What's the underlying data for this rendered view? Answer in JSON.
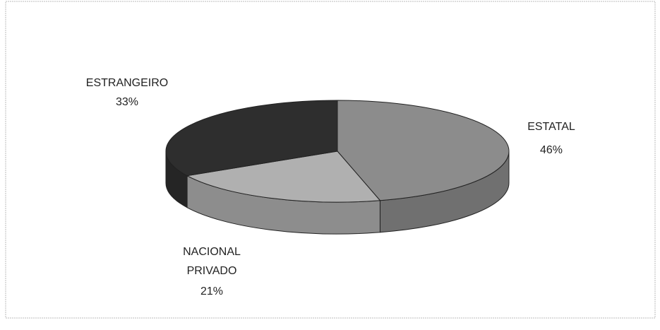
{
  "chart_data": {
    "type": "pie3d",
    "categories": [
      "ESTATAL",
      "NACIONAL PRIVADO",
      "ESTRANGEIRO"
    ],
    "values": [
      46,
      21,
      33
    ],
    "value_labels": [
      "46%",
      "21%",
      "33%"
    ],
    "colors": [
      "#8c8c8c",
      "#b0b0b0",
      "#2e2e2e"
    ]
  }
}
